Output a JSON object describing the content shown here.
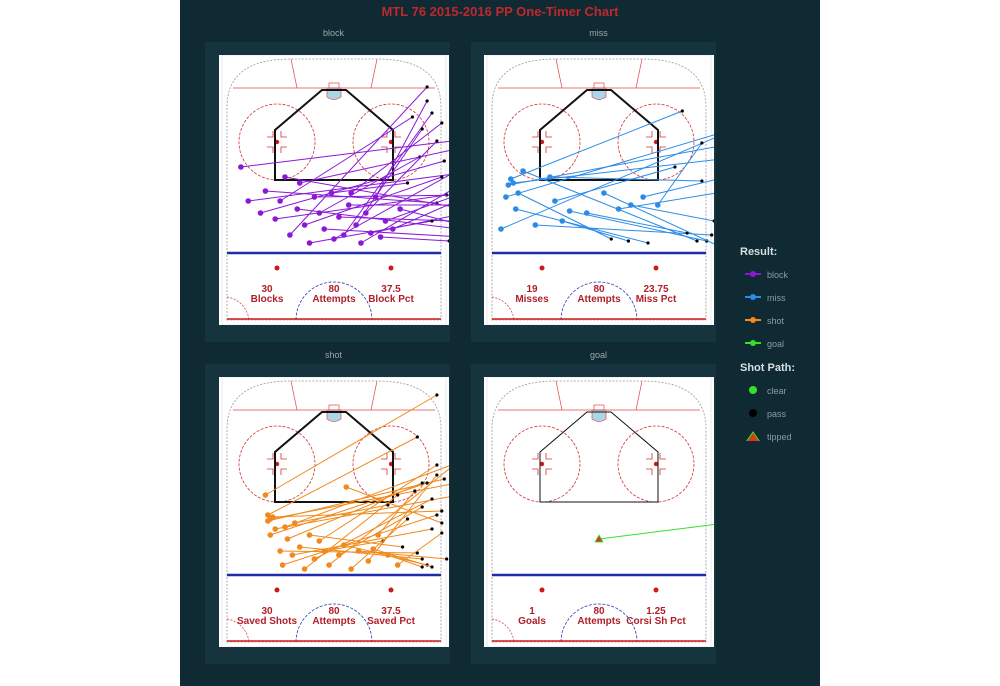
{
  "chart_data": {
    "type": "scatter",
    "title": "MTL 76  2015-2016 PP One-Timer Chart",
    "legend_position": "right",
    "legend": {
      "result_title": "Result:",
      "result": [
        {
          "label": "block",
          "color": "#8a19d6"
        },
        {
          "label": "miss",
          "color": "#2b8ce8"
        },
        {
          "label": "shot",
          "color": "#f08a1c"
        },
        {
          "label": "goal",
          "color": "#33e02a"
        }
      ],
      "path_title": "Shot Path:",
      "path": [
        {
          "label": "clear",
          "marker": "circle",
          "color": "#33e02a"
        },
        {
          "label": "pass",
          "marker": "circle",
          "color": "#000000"
        },
        {
          "label": "tipped",
          "marker": "triangle",
          "color": "#d93a1a"
        }
      ]
    },
    "panels": [
      {
        "name": "block",
        "color": "#8a19d6",
        "stats": [
          {
            "value": "30",
            "label": "Blocks"
          },
          {
            "value": "80",
            "label": "Attempts"
          },
          {
            "value": "37.5",
            "label": "Block Pct"
          }
        ],
        "segments": [
          [
            [
              -38,
              43
            ],
            [
              48,
              56
            ]
          ],
          [
            [
              -35,
              26
            ],
            [
              52,
              40
            ]
          ],
          [
            [
              -28,
              31
            ],
            [
              42,
              25
            ]
          ],
          [
            [
              -24,
              17
            ],
            [
              46,
              29
            ]
          ],
          [
            [
              -22,
              26
            ],
            [
              32,
              68
            ]
          ],
          [
            [
              -20,
              38
            ],
            [
              58,
              21
            ]
          ],
          [
            [
              -18,
              9
            ],
            [
              38,
              83
            ]
          ],
          [
            [
              -15,
              22
            ],
            [
              51,
              12
            ]
          ],
          [
            [
              -12,
              14
            ],
            [
              44,
              38
            ]
          ],
          [
            [
              -8,
              28
            ],
            [
              55,
              29
            ]
          ],
          [
            [
              -6,
              20
            ],
            [
              35,
              48
            ]
          ],
          [
            [
              -4,
              12
            ],
            [
              52,
              8
            ]
          ],
          [
            [
              -1,
              30
            ],
            [
              30,
              35
            ]
          ],
          [
            [
              2,
              18
            ],
            [
              48,
              16
            ]
          ],
          [
            [
              4,
              9
            ],
            [
              40,
              70
            ]
          ],
          [
            [
              6,
              24
            ],
            [
              53,
              24
            ]
          ],
          [
            [
              9,
              14
            ],
            [
              36,
              62
            ]
          ],
          [
            [
              11,
              5
            ],
            [
              50,
              33
            ]
          ],
          [
            [
              13,
              20
            ],
            [
              42,
              56
            ]
          ],
          [
            [
              15,
              10
            ],
            [
              54,
              20
            ]
          ],
          [
            [
              17,
              28
            ],
            [
              38,
              76
            ]
          ],
          [
            [
              19,
              8
            ],
            [
              47,
              6
            ]
          ],
          [
            [
              21,
              16
            ],
            [
              55,
              31
            ]
          ],
          [
            [
              -30,
              20
            ],
            [
              45,
              46
            ]
          ],
          [
            [
              -14,
              35
            ],
            [
              50,
              52
            ]
          ],
          [
            [
              -10,
              5
            ],
            [
              40,
              16
            ]
          ],
          [
            [
              0,
              7
            ],
            [
              53,
              43
            ]
          ],
          [
            [
              7,
              30
            ],
            [
              44,
              65
            ]
          ],
          [
            [
              24,
              12
            ],
            [
              52,
              27
            ]
          ],
          [
            [
              27,
              22
            ],
            [
              49,
              15
            ]
          ]
        ]
      },
      {
        "name": "miss",
        "color": "#2b8ce8",
        "stats": [
          {
            "value": "19",
            "label": "Misses"
          },
          {
            "value": "80",
            "label": "Attempts"
          },
          {
            "value": "23.75",
            "label": "Miss Pct"
          }
        ],
        "segments": [
          [
            [
              -40,
              12
            ],
            [
              48,
              58
            ]
          ],
          [
            [
              -38,
              28
            ],
            [
              55,
              62
            ]
          ],
          [
            [
              -37,
              34
            ],
            [
              56,
              55
            ]
          ],
          [
            [
              -36,
              37
            ],
            [
              34,
              71
            ]
          ],
          [
            [
              -35,
              35
            ],
            [
              50,
              47
            ]
          ],
          [
            [
              -34,
              22
            ],
            [
              20,
              5
            ]
          ],
          [
            [
              -33,
              30
            ],
            [
              5,
              7
            ]
          ],
          [
            [
              -31,
              41
            ],
            [
              40,
              6
            ]
          ],
          [
            [
              -26,
              14
            ],
            [
              46,
              9
            ]
          ],
          [
            [
              -20,
              38
            ],
            [
              42,
              36
            ]
          ],
          [
            [
              -18,
              26
            ],
            [
              31,
              43
            ]
          ],
          [
            [
              -15,
              16
            ],
            [
              12,
              6
            ]
          ],
          [
            [
              -12,
              21
            ],
            [
              44,
              6
            ]
          ],
          [
            [
              -5,
              20
            ],
            [
              36,
              10
            ]
          ],
          [
            [
              2,
              30
            ],
            [
              48,
              4
            ]
          ],
          [
            [
              8,
              22
            ],
            [
              48,
              30
            ]
          ],
          [
            [
              13,
              24
            ],
            [
              47,
              16
            ]
          ],
          [
            [
              18,
              28
            ],
            [
              52,
              38
            ]
          ],
          [
            [
              24,
              24
            ],
            [
              42,
              55
            ]
          ]
        ]
      },
      {
        "name": "shot",
        "color": "#f08a1c",
        "stats": [
          {
            "value": "30",
            "label": "Saved Shots"
          },
          {
            "value": "80",
            "label": "Attempts"
          },
          {
            "value": "37.5",
            "label": "Saved Pct"
          }
        ],
        "segments": [
          [
            [
              -28,
              40
            ],
            [
              42,
              90
            ]
          ],
          [
            [
              -27,
              30
            ],
            [
              34,
              69
            ]
          ],
          [
            [
              -27,
              27
            ],
            [
              45,
              48
            ]
          ],
          [
            [
              -26,
              20
            ],
            [
              38,
              46
            ]
          ],
          [
            [
              -26,
              28
            ],
            [
              50,
              46
            ]
          ],
          [
            [
              -25,
              29
            ],
            [
              44,
              32
            ]
          ],
          [
            [
              -24,
              23
            ],
            [
              51,
              40
            ]
          ],
          [
            [
              -22,
              12
            ],
            [
              34,
              11
            ]
          ],
          [
            [
              -21,
              5
            ],
            [
              42,
              30
            ]
          ],
          [
            [
              -20,
              24
            ],
            [
              48,
              55
            ]
          ],
          [
            [
              -19,
              18
            ],
            [
              36,
              46
            ]
          ],
          [
            [
              -17,
              10
            ],
            [
              40,
              23
            ]
          ],
          [
            [
              -16,
              26
            ],
            [
              22,
              35
            ]
          ],
          [
            [
              -14,
              14
            ],
            [
              36,
              8
            ]
          ],
          [
            [
              -12,
              3
            ],
            [
              26,
              40
            ]
          ],
          [
            [
              -10,
              20
            ],
            [
              28,
              14
            ]
          ],
          [
            [
              -8,
              8
            ],
            [
              40,
              38
            ]
          ],
          [
            [
              -6,
              17
            ],
            [
              42,
              55
            ]
          ],
          [
            [
              -4,
              12
            ],
            [
              20,
              17
            ]
          ],
          [
            [
              -2,
              5
            ],
            [
              50,
              56
            ]
          ],
          [
            [
              2,
              10
            ],
            [
              36,
              34
            ]
          ],
          [
            [
              4,
              15
            ],
            [
              38,
              5
            ]
          ],
          [
            [
              5,
              44
            ],
            [
              44,
              26
            ]
          ],
          [
            [
              7,
              3
            ],
            [
              30,
              28
            ]
          ],
          [
            [
              10,
              12
            ],
            [
              46,
              8
            ]
          ],
          [
            [
              14,
              7
            ],
            [
              42,
              50
            ]
          ],
          [
            [
              16,
              13
            ],
            [
              40,
              4
            ]
          ],
          [
            [
              18,
              20
            ],
            [
              33,
              42
            ]
          ],
          [
            [
              22,
              10
            ],
            [
              36,
              4
            ]
          ],
          [
            [
              26,
              5
            ],
            [
              44,
              21
            ]
          ]
        ]
      },
      {
        "name": "goal",
        "color": "#33e02a",
        "stats": [
          {
            "value": "1",
            "label": "Goals"
          },
          {
            "value": "80",
            "label": "Attempts"
          },
          {
            "value": "1.25",
            "label": "Corsi Sh Pct"
          }
        ],
        "segments": [
          [
            [
              0,
              18
            ],
            [
              52,
              26
            ]
          ]
        ]
      }
    ]
  }
}
